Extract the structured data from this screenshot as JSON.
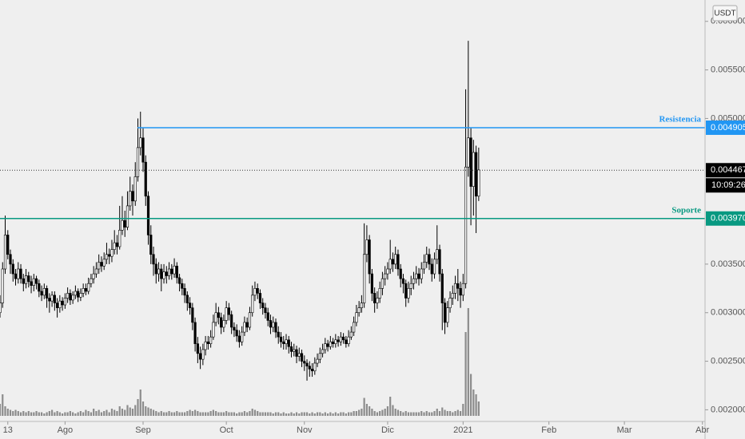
{
  "chart_data": {
    "type": "candlestick",
    "currency": "USDT",
    "ohlc": [
      [
        0.003,
        0.00318,
        0.00295,
        0.0031
      ],
      [
        0.0031,
        0.00352,
        0.00305,
        0.00345
      ],
      [
        0.00345,
        0.004,
        0.0034,
        0.0038
      ],
      [
        0.0038,
        0.00385,
        0.00355,
        0.0036
      ],
      [
        0.0036,
        0.00365,
        0.0034,
        0.0035
      ],
      [
        0.0035,
        0.00355,
        0.00332,
        0.0034
      ],
      [
        0.0034,
        0.00345,
        0.00328,
        0.00335
      ],
      [
        0.00335,
        0.00352,
        0.0033,
        0.00345
      ],
      [
        0.00345,
        0.0035,
        0.0033,
        0.00335
      ],
      [
        0.00335,
        0.0034,
        0.00322,
        0.0033
      ],
      [
        0.0033,
        0.00345,
        0.00325,
        0.00338
      ],
      [
        0.00338,
        0.00342,
        0.00326,
        0.00332
      ],
      [
        0.00332,
        0.00338,
        0.0032,
        0.00328
      ],
      [
        0.00328,
        0.0034,
        0.00322,
        0.00335
      ],
      [
        0.00335,
        0.00338,
        0.00324,
        0.0033
      ],
      [
        0.0033,
        0.00334,
        0.00316,
        0.00322
      ],
      [
        0.00322,
        0.00328,
        0.00312,
        0.00318
      ],
      [
        0.00318,
        0.0033,
        0.00314,
        0.00325
      ],
      [
        0.00325,
        0.00328,
        0.00305,
        0.00315
      ],
      [
        0.00315,
        0.0032,
        0.003,
        0.00312
      ],
      [
        0.00312,
        0.00322,
        0.00306,
        0.00318
      ],
      [
        0.00318,
        0.00322,
        0.00302,
        0.0031
      ],
      [
        0.0031,
        0.00315,
        0.00295,
        0.00305
      ],
      [
        0.00305,
        0.00318,
        0.003,
        0.00312
      ],
      [
        0.00312,
        0.00316,
        0.00302,
        0.00308
      ],
      [
        0.00308,
        0.0032,
        0.00304,
        0.00315
      ],
      [
        0.00315,
        0.00326,
        0.0031,
        0.0032
      ],
      [
        0.0032,
        0.00324,
        0.00308,
        0.00313
      ],
      [
        0.00313,
        0.00322,
        0.00309,
        0.00318
      ],
      [
        0.00318,
        0.00328,
        0.00314,
        0.00322
      ],
      [
        0.00322,
        0.00325,
        0.00311,
        0.00316
      ],
      [
        0.00316,
        0.00325,
        0.00312,
        0.0032
      ],
      [
        0.0032,
        0.0033,
        0.00316,
        0.00325
      ],
      [
        0.00325,
        0.0033,
        0.00318,
        0.00322
      ],
      [
        0.00322,
        0.00336,
        0.00319,
        0.0033
      ],
      [
        0.0033,
        0.0034,
        0.00326,
        0.00335
      ],
      [
        0.00335,
        0.00348,
        0.0033,
        0.0034
      ],
      [
        0.0034,
        0.00352,
        0.00336,
        0.00345
      ],
      [
        0.00345,
        0.0036,
        0.0034,
        0.00352
      ],
      [
        0.00352,
        0.00358,
        0.00342,
        0.00348
      ],
      [
        0.00348,
        0.00362,
        0.00344,
        0.00355
      ],
      [
        0.00355,
        0.00372,
        0.0035,
        0.0036
      ],
      [
        0.0036,
        0.00366,
        0.0035,
        0.00358
      ],
      [
        0.00358,
        0.00375,
        0.00352,
        0.00365
      ],
      [
        0.00365,
        0.00385,
        0.0036,
        0.00372
      ],
      [
        0.00372,
        0.0038,
        0.0036,
        0.00368
      ],
      [
        0.00368,
        0.0041,
        0.00365,
        0.00385
      ],
      [
        0.00385,
        0.0042,
        0.0038,
        0.00395
      ],
      [
        0.00395,
        0.00405,
        0.00378,
        0.00388
      ],
      [
        0.00388,
        0.00425,
        0.00385,
        0.0041
      ],
      [
        0.0041,
        0.0044,
        0.00405,
        0.00425
      ],
      [
        0.00425,
        0.00432,
        0.004,
        0.00415
      ],
      [
        0.00415,
        0.00455,
        0.0041,
        0.0044
      ],
      [
        0.0044,
        0.005,
        0.00435,
        0.0047
      ],
      [
        0.0047,
        0.00507,
        0.00462,
        0.0048
      ],
      [
        0.0048,
        0.0049,
        0.00445,
        0.00455
      ],
      [
        0.00455,
        0.00462,
        0.0041,
        0.0042
      ],
      [
        0.0042,
        0.00425,
        0.0037,
        0.0038
      ],
      [
        0.0038,
        0.0039,
        0.0035,
        0.0036
      ],
      [
        0.0036,
        0.00368,
        0.00338,
        0.0035
      ],
      [
        0.0035,
        0.00356,
        0.0033,
        0.0034
      ],
      [
        0.0034,
        0.00352,
        0.00332,
        0.00345
      ],
      [
        0.00345,
        0.0035,
        0.00322,
        0.00335
      ],
      [
        0.00335,
        0.0035,
        0.0033,
        0.00342
      ],
      [
        0.00342,
        0.00348,
        0.0033,
        0.00338
      ],
      [
        0.00338,
        0.00352,
        0.00334,
        0.00345
      ],
      [
        0.00345,
        0.0035,
        0.00334,
        0.0034
      ],
      [
        0.0034,
        0.00356,
        0.00336,
        0.00348
      ],
      [
        0.00348,
        0.00352,
        0.0033,
        0.00336
      ],
      [
        0.00336,
        0.0034,
        0.00322,
        0.0033
      ],
      [
        0.0033,
        0.00335,
        0.00318,
        0.00325
      ],
      [
        0.00325,
        0.0033,
        0.0031,
        0.00318
      ],
      [
        0.00318,
        0.00322,
        0.00302,
        0.0031
      ],
      [
        0.0031,
        0.00316,
        0.00298,
        0.00305
      ],
      [
        0.00305,
        0.0031,
        0.00282,
        0.0029
      ],
      [
        0.0029,
        0.00295,
        0.0026,
        0.00268
      ],
      [
        0.00268,
        0.00275,
        0.00248,
        0.00258
      ],
      [
        0.00258,
        0.00265,
        0.00242,
        0.00252
      ],
      [
        0.00252,
        0.00268,
        0.00246,
        0.00262
      ],
      [
        0.00262,
        0.00276,
        0.00256,
        0.0027
      ],
      [
        0.0027,
        0.00276,
        0.00262,
        0.00268
      ],
      [
        0.00268,
        0.00282,
        0.00264,
        0.00275
      ],
      [
        0.00275,
        0.00298,
        0.00272,
        0.0029
      ],
      [
        0.0029,
        0.0031,
        0.00286,
        0.003
      ],
      [
        0.003,
        0.00306,
        0.00288,
        0.00295
      ],
      [
        0.00295,
        0.003,
        0.00278,
        0.00285
      ],
      [
        0.00285,
        0.00298,
        0.0028,
        0.00292
      ],
      [
        0.00292,
        0.00312,
        0.00288,
        0.00305
      ],
      [
        0.00305,
        0.0031,
        0.00292,
        0.00298
      ],
      [
        0.00298,
        0.00302,
        0.00278,
        0.00285
      ],
      [
        0.00285,
        0.0029,
        0.00275,
        0.00282
      ],
      [
        0.00282,
        0.00288,
        0.0027,
        0.00276
      ],
      [
        0.00276,
        0.00282,
        0.00264,
        0.0027
      ],
      [
        0.0027,
        0.00286,
        0.00266,
        0.0028
      ],
      [
        0.0028,
        0.00296,
        0.00276,
        0.0029
      ],
      [
        0.0029,
        0.00295,
        0.0028,
        0.00285
      ],
      [
        0.00285,
        0.00306,
        0.00282,
        0.003
      ],
      [
        0.003,
        0.00328,
        0.00296,
        0.00318
      ],
      [
        0.00318,
        0.00332,
        0.00312,
        0.00325
      ],
      [
        0.00325,
        0.0033,
        0.00314,
        0.0032
      ],
      [
        0.0032,
        0.00324,
        0.00304,
        0.0031
      ],
      [
        0.0031,
        0.00315,
        0.00298,
        0.00305
      ],
      [
        0.00305,
        0.0031,
        0.00294,
        0.003
      ],
      [
        0.003,
        0.00305,
        0.00286,
        0.00292
      ],
      [
        0.00292,
        0.00298,
        0.00278,
        0.00285
      ],
      [
        0.00285,
        0.00296,
        0.0028,
        0.0029
      ],
      [
        0.0029,
        0.00294,
        0.00274,
        0.0028
      ],
      [
        0.0028,
        0.00286,
        0.00268,
        0.00275
      ],
      [
        0.00275,
        0.0028,
        0.00264,
        0.0027
      ],
      [
        0.0027,
        0.00276,
        0.00262,
        0.00268
      ],
      [
        0.00268,
        0.00278,
        0.00262,
        0.00272
      ],
      [
        0.00272,
        0.00276,
        0.00258,
        0.00265
      ],
      [
        0.00265,
        0.0027,
        0.00254,
        0.0026
      ],
      [
        0.0026,
        0.00268,
        0.00255,
        0.00262
      ],
      [
        0.00262,
        0.00266,
        0.00248,
        0.00255
      ],
      [
        0.00255,
        0.00264,
        0.0025,
        0.00258
      ],
      [
        0.00258,
        0.00262,
        0.00244,
        0.0025
      ],
      [
        0.0025,
        0.00256,
        0.0024,
        0.00248
      ],
      [
        0.00248,
        0.00252,
        0.0023,
        0.00245
      ],
      [
        0.00245,
        0.0025,
        0.00234,
        0.00242
      ],
      [
        0.00242,
        0.00248,
        0.00234,
        0.0024
      ],
      [
        0.0024,
        0.00254,
        0.00236,
        0.00248
      ],
      [
        0.00248,
        0.00258,
        0.00244,
        0.00252
      ],
      [
        0.00252,
        0.00264,
        0.00248,
        0.00258
      ],
      [
        0.00258,
        0.00268,
        0.00254,
        0.00262
      ],
      [
        0.00262,
        0.00274,
        0.00258,
        0.00268
      ],
      [
        0.00268,
        0.00272,
        0.0026,
        0.00265
      ],
      [
        0.00265,
        0.00276,
        0.00262,
        0.0027
      ],
      [
        0.0027,
        0.00274,
        0.00264,
        0.00268
      ],
      [
        0.00268,
        0.00278,
        0.00264,
        0.00272
      ],
      [
        0.00272,
        0.00276,
        0.00265,
        0.0027
      ],
      [
        0.0027,
        0.0028,
        0.00266,
        0.00275
      ],
      [
        0.00275,
        0.00279,
        0.00268,
        0.00272
      ],
      [
        0.00272,
        0.00276,
        0.00264,
        0.00268
      ],
      [
        0.00268,
        0.00282,
        0.00265,
        0.00275
      ],
      [
        0.00275,
        0.00286,
        0.00272,
        0.0028
      ],
      [
        0.0028,
        0.00296,
        0.00276,
        0.0029
      ],
      [
        0.0029,
        0.00308,
        0.00286,
        0.003
      ],
      [
        0.003,
        0.00312,
        0.00296,
        0.00305
      ],
      [
        0.00305,
        0.00318,
        0.003,
        0.0031
      ],
      [
        0.0031,
        0.00392,
        0.00305,
        0.0036
      ],
      [
        0.0036,
        0.0039,
        0.00352,
        0.00375
      ],
      [
        0.00375,
        0.0038,
        0.0033,
        0.0034
      ],
      [
        0.0034,
        0.00345,
        0.00312,
        0.0032
      ],
      [
        0.0032,
        0.00326,
        0.003,
        0.0031
      ],
      [
        0.0031,
        0.00322,
        0.00304,
        0.00315
      ],
      [
        0.00315,
        0.00332,
        0.0031,
        0.00325
      ],
      [
        0.00325,
        0.00342,
        0.00318,
        0.00335
      ],
      [
        0.00335,
        0.00348,
        0.00328,
        0.0034
      ],
      [
        0.0034,
        0.00352,
        0.00334,
        0.00345
      ],
      [
        0.00345,
        0.00375,
        0.0034,
        0.00355
      ],
      [
        0.00355,
        0.00362,
        0.00342,
        0.0035
      ],
      [
        0.0035,
        0.00368,
        0.00345,
        0.0036
      ],
      [
        0.0036,
        0.00365,
        0.00338,
        0.00345
      ],
      [
        0.00345,
        0.0035,
        0.00326,
        0.00335
      ],
      [
        0.00335,
        0.0034,
        0.0032,
        0.0033
      ],
      [
        0.0033,
        0.00334,
        0.00306,
        0.00315
      ],
      [
        0.00315,
        0.00332,
        0.0031,
        0.00325
      ],
      [
        0.00325,
        0.00338,
        0.00318,
        0.0033
      ],
      [
        0.0033,
        0.00342,
        0.00324,
        0.00335
      ],
      [
        0.00335,
        0.00348,
        0.0033,
        0.0034
      ],
      [
        0.0034,
        0.00346,
        0.00328,
        0.00335
      ],
      [
        0.00335,
        0.00352,
        0.0033,
        0.00345
      ],
      [
        0.00345,
        0.0036,
        0.0034,
        0.00352
      ],
      [
        0.00352,
        0.00368,
        0.00346,
        0.0036
      ],
      [
        0.0036,
        0.00366,
        0.00344,
        0.0035
      ],
      [
        0.0035,
        0.00356,
        0.00332,
        0.0034
      ],
      [
        0.0034,
        0.00362,
        0.00335,
        0.00355
      ],
      [
        0.00355,
        0.0039,
        0.0035,
        0.00365
      ],
      [
        0.00365,
        0.0037,
        0.00332,
        0.0034
      ],
      [
        0.0034,
        0.00345,
        0.00282,
        0.0031
      ],
      [
        0.0031,
        0.00315,
        0.00278,
        0.0029
      ],
      [
        0.0029,
        0.00312,
        0.00285,
        0.00305
      ],
      [
        0.00305,
        0.00322,
        0.003,
        0.00315
      ],
      [
        0.00315,
        0.00328,
        0.00308,
        0.0032
      ],
      [
        0.0032,
        0.00338,
        0.00314,
        0.0033
      ],
      [
        0.0033,
        0.00345,
        0.00312,
        0.00325
      ],
      [
        0.00325,
        0.00332,
        0.00305,
        0.00318
      ],
      [
        0.00318,
        0.0034,
        0.00312,
        0.0033
      ],
      [
        0.0033,
        0.0053,
        0.00325,
        0.0045
      ],
      [
        0.0045,
        0.0058,
        0.0044,
        0.0048
      ],
      [
        0.0048,
        0.0049,
        0.0039,
        0.0043
      ],
      [
        0.0043,
        0.00478,
        0.004,
        0.00465
      ],
      [
        0.00465,
        0.00472,
        0.00382,
        0.0042
      ],
      [
        0.0042,
        0.0047,
        0.00415,
        0.00447
      ]
    ],
    "volume": [
      10,
      18,
      8,
      6,
      5,
      4,
      5,
      4,
      3,
      4,
      3,
      4,
      3,
      3,
      4,
      3,
      3,
      2,
      3,
      4,
      5,
      3,
      4,
      3,
      2,
      3,
      3,
      4,
      3,
      2,
      3,
      4,
      3,
      5,
      4,
      3,
      6,
      4,
      5,
      3,
      4,
      5,
      3,
      6,
      5,
      4,
      8,
      6,
      5,
      9,
      7,
      6,
      9,
      14,
      22,
      12,
      8,
      7,
      6,
      5,
      4,
      3,
      4,
      3,
      3,
      4,
      3,
      3,
      4,
      3,
      3,
      3,
      4,
      5,
      4,
      5,
      4,
      3,
      3,
      3,
      3,
      4,
      5,
      4,
      3,
      3,
      3,
      4,
      3,
      3,
      3,
      2,
      3,
      3,
      4,
      3,
      4,
      6,
      5,
      4,
      3,
      3,
      3,
      3,
      3,
      2,
      3,
      3,
      2,
      3,
      2,
      2,
      3,
      2,
      3,
      2,
      3,
      3,
      3,
      2,
      3,
      2,
      3,
      3,
      2,
      3,
      2,
      3,
      2,
      3,
      2,
      3,
      3,
      2,
      3,
      3,
      4,
      4,
      5,
      6,
      15,
      10,
      8,
      6,
      4,
      3,
      4,
      5,
      6,
      8,
      16,
      9,
      6,
      5,
      4,
      3,
      4,
      3,
      3,
      3,
      3,
      3,
      4,
      3,
      4,
      3,
      3,
      4,
      6,
      4,
      7,
      5,
      4,
      4,
      3,
      4,
      5,
      4,
      10,
      70,
      90,
      35,
      22,
      18,
      12
    ],
    "xlim": [
      0,
      271
    ],
    "xticks": [
      {
        "value": 3,
        "label": "13"
      },
      {
        "value": 25,
        "label": "Ago"
      },
      {
        "value": 55,
        "label": "Sep"
      },
      {
        "value": 87,
        "label": "Oct"
      },
      {
        "value": 117,
        "label": "Nov"
      },
      {
        "value": 149,
        "label": "Dic"
      },
      {
        "value": 178,
        "label": "2021"
      },
      {
        "value": 211,
        "label": "Feb"
      },
      {
        "value": 240,
        "label": "Mar"
      },
      {
        "value": 270,
        "label": "Abr"
      }
    ],
    "ylim": [
      0.00188,
      0.00622
    ],
    "yticks": [
      {
        "value": 0.002,
        "label": "0.002000"
      },
      {
        "value": 0.0025,
        "label": "0.002500"
      },
      {
        "value": 0.003,
        "label": "0.003000"
      },
      {
        "value": 0.0035,
        "label": "0.003500"
      },
      {
        "value": 0.005,
        "label": "0.005000"
      },
      {
        "value": 0.0055,
        "label": "0.005500"
      },
      {
        "value": 0.006,
        "label": "0.006000"
      }
    ],
    "lines": [
      {
        "name": "Resistencia",
        "value": 0.004905,
        "value_label": "0.004905",
        "color": "#2196f3"
      },
      {
        "name": "Soporte",
        "value": 0.00397,
        "value_label": "0.003970",
        "color": "#089981"
      }
    ],
    "last_price": {
      "value": 0.004467,
      "label": "0.004467"
    },
    "countdown": "10:09:26",
    "up_color": "#ffffff",
    "down_color": "#000000",
    "volume_color": "#8c8c8c"
  }
}
